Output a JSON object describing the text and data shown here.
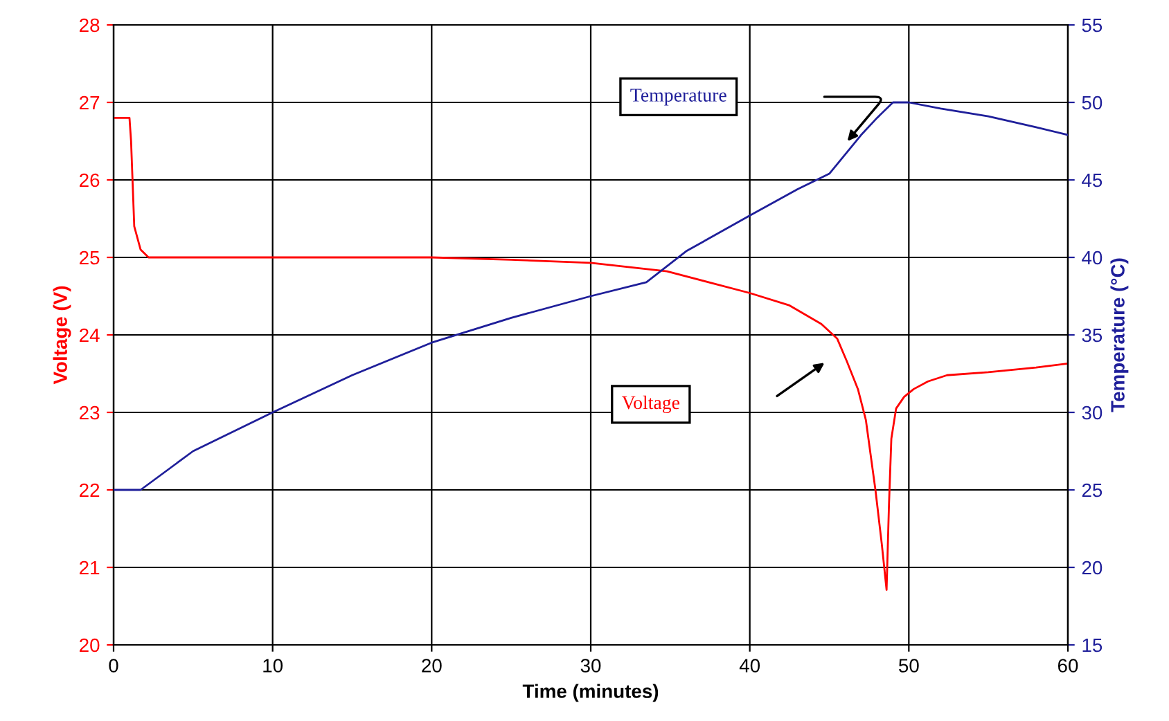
{
  "chart_data": {
    "type": "line",
    "xlabel": "Time (minutes)",
    "ylabel": "Voltage (V)",
    "y2label": "Temperature (°C)",
    "xlim": [
      0,
      60
    ],
    "xticks": [
      0,
      10,
      20,
      30,
      40,
      50,
      60
    ],
    "ylim": [
      20,
      28
    ],
    "yticks": [
      20,
      21,
      22,
      23,
      24,
      25,
      26,
      27,
      28
    ],
    "y2lim": [
      15,
      55
    ],
    "y2ticks": [
      15,
      20,
      25,
      30,
      35,
      40,
      45,
      50,
      55
    ],
    "grid": true,
    "legend": false,
    "marker": "none",
    "line_style": "solid",
    "series": [
      {
        "name": "Voltage",
        "color": "#ff0000",
        "x": [
          0,
          1.0,
          1.1,
          1.3,
          1.7,
          2.2,
          5,
          10,
          15,
          20,
          25,
          30,
          34.8,
          40,
          42.5,
          44.5,
          45.5,
          46.1,
          46.8,
          47.3,
          47.9,
          48.3,
          48.6,
          48.75,
          48.9,
          49.2,
          49.7,
          50.3,
          51.2,
          52.4,
          55,
          58,
          60
        ],
        "values": [
          26.8,
          26.8,
          26.5,
          25.4,
          25.1,
          25.0,
          25.0,
          25.0,
          25.0,
          25.0,
          24.97,
          24.93,
          24.82,
          24.54,
          24.38,
          24.14,
          23.95,
          23.66,
          23.3,
          22.9,
          22.0,
          21.3,
          20.71,
          21.8,
          22.66,
          23.05,
          23.2,
          23.3,
          23.4,
          23.48,
          23.52,
          23.58,
          23.63
        ]
      },
      {
        "name": "Temperature",
        "color": "#1f1f9a",
        "axis": "y2",
        "x": [
          0,
          1.7,
          5,
          10,
          15,
          20,
          25,
          30,
          33.5,
          36,
          40,
          43,
          45,
          47,
          48,
          49,
          50,
          52,
          55,
          58,
          60
        ],
        "values": [
          25,
          25,
          27.5,
          30.0,
          32.4,
          34.5,
          36.1,
          37.5,
          38.4,
          40.4,
          42.7,
          44.4,
          45.4,
          47.9,
          49.0,
          50,
          50,
          49.6,
          49.1,
          48.4,
          47.9
        ]
      }
    ]
  }
}
